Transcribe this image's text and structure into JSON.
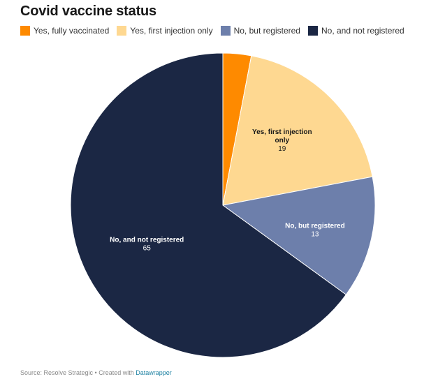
{
  "chart_data": {
    "type": "pie",
    "title": "Covid vaccine status",
    "categories": [
      "Yes, fully vaccinated",
      "Yes, first injection only",
      "No, but registered",
      "No, and not registered"
    ],
    "values": [
      3,
      19,
      13,
      65
    ],
    "colors": [
      "#fe8a00",
      "#fed891",
      "#6d7fab",
      "#1b2744"
    ],
    "label_colors": [
      "#181818",
      "#181818",
      "#ffffff",
      "#ffffff"
    ],
    "slice_labels": [
      null,
      {
        "lines": [
          "Yes, first injection",
          "only"
        ],
        "value": "19"
      },
      {
        "lines": [
          "No, but registered"
        ],
        "value": "13"
      },
      {
        "lines": [
          "No, and not registered"
        ],
        "value": "65"
      }
    ],
    "legend_position": "top-left",
    "start_angle_deg": 0,
    "direction": "clockwise"
  },
  "footer": {
    "source_text": "Source: Resolve Strategic • Created with ",
    "link_text": "Datawrapper"
  }
}
